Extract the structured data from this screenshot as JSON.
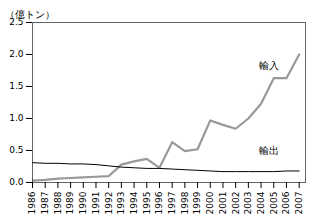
{
  "chart_data": {
    "type": "line",
    "x": [
      1986,
      1987,
      1988,
      1989,
      1990,
      1991,
      1992,
      1993,
      1994,
      1995,
      1996,
      1997,
      1998,
      1999,
      2000,
      2001,
      2002,
      2003,
      2004,
      2005,
      2006,
      2007
    ],
    "series": [
      {
        "name": "輸入",
        "color": "#999999",
        "values": [
          0.03,
          0.04,
          0.06,
          0.07,
          0.08,
          0.09,
          0.1,
          0.28,
          0.33,
          0.37,
          0.23,
          0.63,
          0.49,
          0.52,
          0.97,
          0.9,
          0.84,
          1.0,
          1.23,
          1.63,
          1.63,
          2.0
        ]
      },
      {
        "name": "輸出",
        "color": "#000000",
        "values": [
          0.31,
          0.3,
          0.3,
          0.29,
          0.29,
          0.28,
          0.26,
          0.24,
          0.23,
          0.22,
          0.22,
          0.21,
          0.2,
          0.19,
          0.18,
          0.17,
          0.17,
          0.17,
          0.17,
          0.17,
          0.18,
          0.18
        ]
      }
    ],
    "ylabel": "（億トン）",
    "annotations": [
      {
        "text": "輸入",
        "x": 2003.8,
        "y": 1.82
      },
      {
        "text": "輸出",
        "x": 2003.8,
        "y": 0.5
      }
    ],
    "xlim": [
      1986,
      2007.5
    ],
    "xticks": [
      1986,
      1987,
      1988,
      1989,
      1990,
      1991,
      1992,
      1993,
      1994,
      1995,
      1996,
      1997,
      1998,
      1999,
      2000,
      2001,
      2002,
      2003,
      2004,
      2005,
      2006,
      2007
    ],
    "ylim": [
      0.0,
      2.5
    ],
    "yticks": [
      {
        "value": 0.0,
        "label": "0.0"
      },
      {
        "value": 0.5,
        "label": "0.5"
      },
      {
        "value": 1.0,
        "label": "1.0"
      },
      {
        "value": 1.5,
        "label": "1.5"
      },
      {
        "value": 2.0,
        "label": "2.0"
      },
      {
        "value": 2.5,
        "label": "2.5"
      }
    ],
    "grid": false
  }
}
